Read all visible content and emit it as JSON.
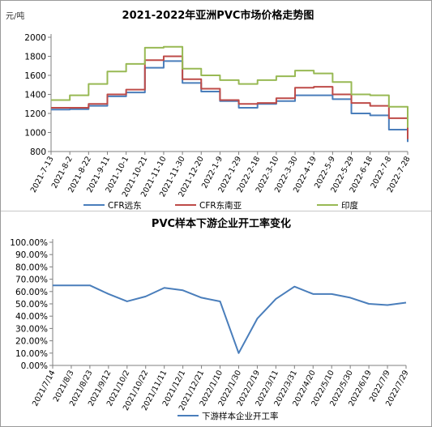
{
  "chart_data": [
    {
      "type": "line",
      "title": "2021-2022年亚洲PVC市场价格走势图",
      "ylabel": "元/吨",
      "ylim": [
        800,
        2000
      ],
      "yticks": [
        800,
        1000,
        1200,
        1400,
        1600,
        1800,
        2000
      ],
      "grid": false,
      "legend_position": "bottom",
      "x": [
        "2021-7-13",
        "2021-8-2",
        "2021-8-22",
        "2021-9-11",
        "2021-10-1",
        "2021-10-21",
        "2021-11-10",
        "2021-11-30",
        "2021-12-20",
        "2022-1-9",
        "2022-1-29",
        "2022-2-18",
        "2022-3-10",
        "2022-3-30",
        "2022-4-19",
        "2022-5-9",
        "2022-5-29",
        "2022-6-18",
        "2022-7-8",
        "2022-7-28"
      ],
      "series": [
        {
          "name": "CFR远东",
          "color": "#4a7ebb",
          "values": [
            1240,
            1245,
            1280,
            1380,
            1420,
            1680,
            1750,
            1520,
            1430,
            1330,
            1260,
            1300,
            1330,
            1390,
            1390,
            1350,
            1200,
            1180,
            1030,
            900
          ]
        },
        {
          "name": "CFR东南亚",
          "color": "#be4b48",
          "values": [
            1260,
            1260,
            1300,
            1400,
            1450,
            1760,
            1800,
            1560,
            1460,
            1340,
            1300,
            1310,
            1360,
            1470,
            1480,
            1400,
            1310,
            1280,
            1150,
            930
          ]
        },
        {
          "name": "印度",
          "color": "#98b954",
          "values": [
            1340,
            1390,
            1510,
            1640,
            1720,
            1890,
            1900,
            1670,
            1600,
            1550,
            1510,
            1550,
            1590,
            1650,
            1620,
            1530,
            1400,
            1390,
            1270,
            1050
          ]
        }
      ]
    },
    {
      "type": "line",
      "title": "PVC样本下游企业开工率变化",
      "ylim": [
        0,
        100
      ],
      "yticks": [
        "0.00%",
        "10.00%",
        "20.00%",
        "30.00%",
        "40.00%",
        "50.00%",
        "60.00%",
        "70.00%",
        "80.00%",
        "90.00%",
        "100.00%"
      ],
      "grid": false,
      "legend_position": "bottom",
      "x": [
        "2021/7/14",
        "2021/8/3",
        "2021/8/23",
        "2021/9/12",
        "2021/10/2",
        "2021/10/22",
        "2021/11/11",
        "2021/12/1",
        "2021/12/21",
        "2022/1/10",
        "2022/1/30",
        "2022/2/19",
        "2022/3/11",
        "2022/3/31",
        "2022/4/20",
        "2022/5/10",
        "2022/5/30",
        "2022/6/19",
        "2022/7/9",
        "2022/7/29"
      ],
      "series": [
        {
          "name": "下游样本企业开工率",
          "color": "#4a7ebb",
          "values": [
            65,
            65,
            65,
            58,
            52,
            56,
            63,
            61,
            55,
            52,
            10,
            38,
            54,
            64,
            58,
            58,
            55,
            50,
            49,
            51
          ]
        }
      ]
    }
  ]
}
